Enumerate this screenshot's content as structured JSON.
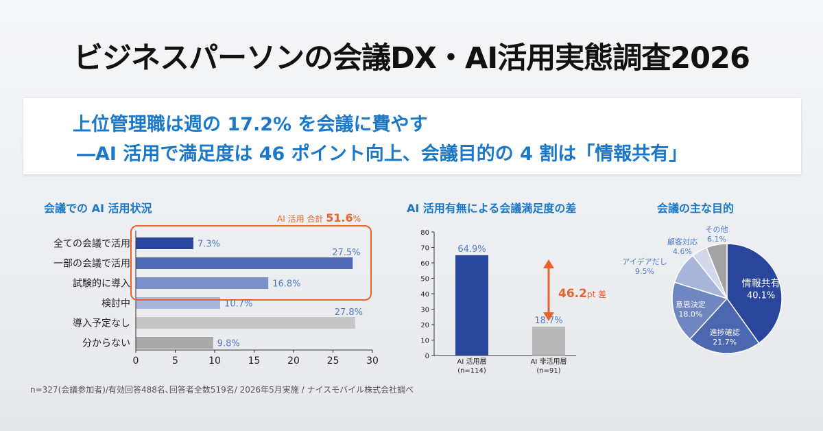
{
  "title": "ビジネスパーソンの会議DX・AI活用実態調査2026",
  "headline": {
    "line1": "上位管理職は週の 17.2% を会議に費やす",
    "line2": "―AI 活用で満足度は 46 ポイント向上、会議目的の 4 割は「情報共有」"
  },
  "footnote": "n=327(会議参加者)/有効回答488名､回答者全数519名/ 2026年5月実施 / ナイスモバイル株式会社調べ",
  "colors": {
    "accent": "#1b77c8",
    "highlight": "#e8622a",
    "bar_dark": "#2a469c",
    "bar_gray": "#b9b9b9"
  },
  "chart_data": [
    {
      "type": "bar",
      "orientation": "horizontal",
      "title": "会議での AI 活用状況",
      "categories": [
        "全ての会議で活用",
        "一部の会議で活用",
        "試験的に導入",
        "検討中",
        "導入予定なし",
        "分からない"
      ],
      "values": [
        7.3,
        27.5,
        16.8,
        10.7,
        27.8,
        9.8
      ],
      "value_labels": [
        "7.3%",
        "27.5%",
        "16.8%",
        "10.7%",
        "27.8%",
        "9.8%"
      ],
      "bar_colors": [
        "#2a469c",
        "#4e6ab3",
        "#7a90c8",
        "#a9b7dc",
        "#c6c6c6",
        "#a9a9a9"
      ],
      "xlim": [
        0,
        30
      ],
      "xticks": [
        "0",
        "5",
        "10",
        "15",
        "20",
        "25",
        "30"
      ],
      "annotation": {
        "label": "AI 活用 合計",
        "value": "51.6",
        "unit": "%"
      }
    },
    {
      "type": "bar",
      "title": "AI 活用有無による会議満足度の差",
      "categories": [
        "AI 活用層",
        "AI 非活用層"
      ],
      "category_notes": [
        "(n=114)",
        "(n=91)"
      ],
      "values": [
        64.9,
        18.7
      ],
      "value_labels": [
        "64.9%",
        "18.7%"
      ],
      "bar_colors": [
        "#2a469c",
        "#b9b9b9"
      ],
      "ylim": [
        0,
        80
      ],
      "yticks": [
        "0",
        "10",
        "20",
        "30",
        "40",
        "50",
        "60",
        "70",
        "80"
      ],
      "difference": {
        "value": "46.2",
        "unit": "pt 差"
      }
    },
    {
      "type": "pie",
      "title": "会議の主な目的",
      "slices": [
        {
          "label": "情報共有",
          "value": 40.1,
          "value_label": "40.1%",
          "color": "#2a469c"
        },
        {
          "label": "進捗確認",
          "value": 21.7,
          "value_label": "21.7%",
          "color": "#4b67b0"
        },
        {
          "label": "意思決定",
          "value": 18.0,
          "value_label": "18.0%",
          "color": "#7086c0"
        },
        {
          "label": "アイデアだし",
          "value": 9.5,
          "value_label": "9.5%",
          "color": "#a7b5d9"
        },
        {
          "label": "顧客対応",
          "value": 4.6,
          "value_label": "4.6%",
          "color": "#d3d9ea"
        },
        {
          "label": "その他",
          "value": 6.1,
          "value_label": "6.1%",
          "color": "#a3a3a3"
        }
      ]
    }
  ]
}
